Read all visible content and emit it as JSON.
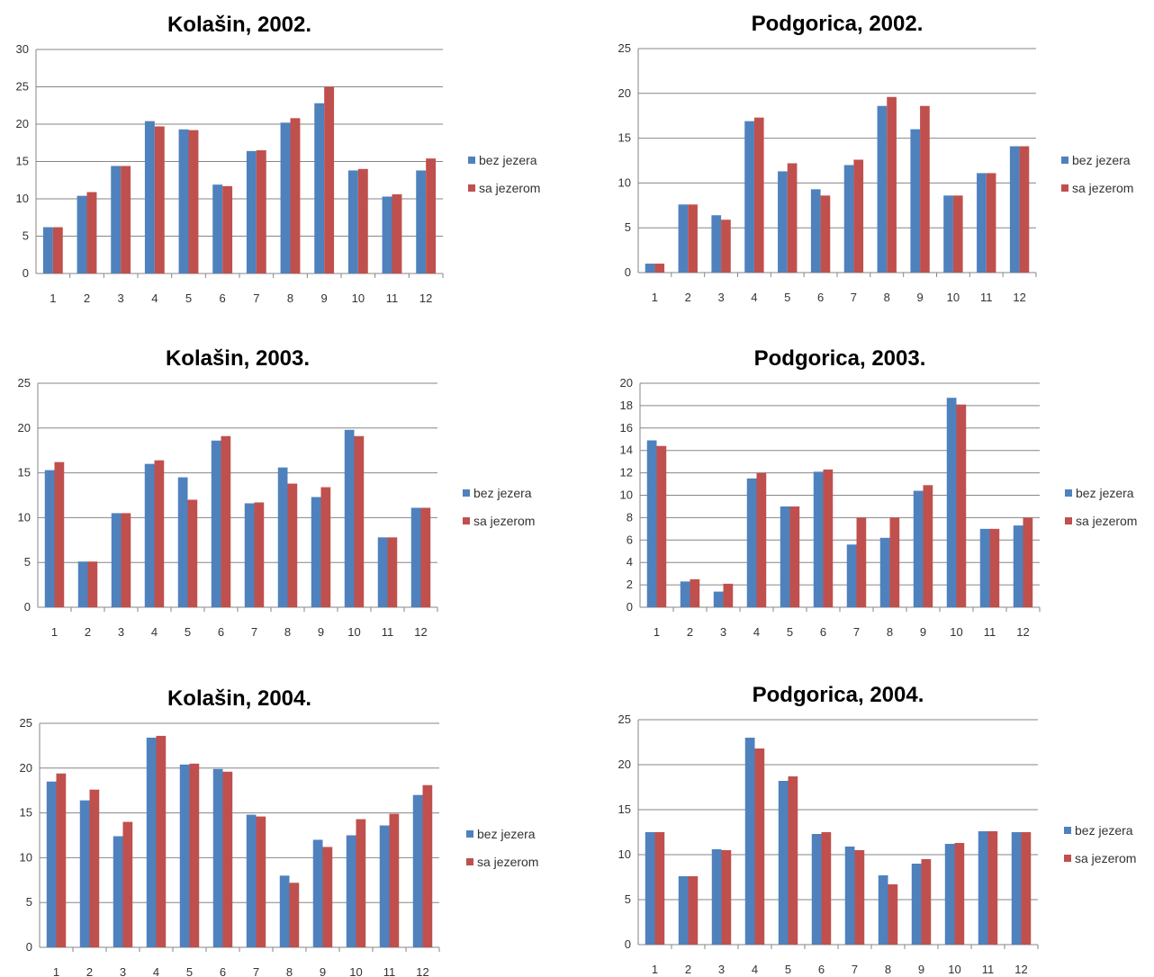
{
  "colors": {
    "bez_jezera": "#4F81BD",
    "sa_jezerom": "#C0504D",
    "grid": "#868686",
    "axis": "#868686"
  },
  "chart_data": [
    {
      "type": "bar",
      "title": "Kolašin, 2002.",
      "categories": [
        "1",
        "2",
        "3",
        "4",
        "5",
        "6",
        "7",
        "8",
        "9",
        "10",
        "11",
        "12"
      ],
      "ylim": [
        0,
        30
      ],
      "ystep": 5,
      "ytick_labels": [
        "0",
        "5",
        "10",
        "15",
        "20",
        "25",
        "30"
      ],
      "grid": true,
      "legend": "right",
      "series": [
        {
          "name": "bez jezera",
          "values": [
            6.2,
            10.4,
            14.4,
            20.4,
            19.3,
            11.9,
            16.4,
            20.2,
            22.8,
            13.8,
            10.3,
            13.8
          ]
        },
        {
          "name": "sa jezerom",
          "values": [
            6.2,
            10.9,
            14.4,
            19.7,
            19.2,
            11.7,
            16.5,
            20.8,
            25.0,
            14.0,
            10.6,
            15.4
          ]
        }
      ]
    },
    {
      "type": "bar",
      "title": "Podgorica, 2002.",
      "categories": [
        "1",
        "2",
        "3",
        "4",
        "5",
        "6",
        "7",
        "8",
        "9",
        "10",
        "11",
        "12"
      ],
      "ylim": [
        0,
        25
      ],
      "ystep": 5,
      "ytick_labels": [
        "0",
        "5",
        "10",
        "15",
        "20",
        "25"
      ],
      "grid": true,
      "legend": "right",
      "series": [
        {
          "name": "bez jezera",
          "values": [
            1.0,
            7.6,
            6.4,
            16.9,
            11.3,
            9.3,
            12.0,
            18.6,
            16.0,
            8.6,
            11.1,
            14.1
          ]
        },
        {
          "name": "sa jezerom",
          "values": [
            1.0,
            7.6,
            5.9,
            17.3,
            12.2,
            8.6,
            12.6,
            19.6,
            18.6,
            8.6,
            11.1,
            14.1
          ]
        }
      ]
    },
    {
      "type": "bar",
      "title": "Kolašin, 2003.",
      "categories": [
        "1",
        "2",
        "3",
        "4",
        "5",
        "6",
        "7",
        "8",
        "9",
        "10",
        "11",
        "12"
      ],
      "ylim": [
        0,
        25
      ],
      "ystep": 5,
      "ytick_labels": [
        "0",
        "5",
        "10",
        "15",
        "20",
        "25"
      ],
      "grid": true,
      "legend": "right",
      "series": [
        {
          "name": "bez jezera",
          "values": [
            15.3,
            5.1,
            10.5,
            16.0,
            14.5,
            18.6,
            11.6,
            15.6,
            12.3,
            19.8,
            7.8,
            11.1
          ]
        },
        {
          "name": "sa jezerom",
          "values": [
            16.2,
            5.1,
            10.5,
            16.4,
            12.0,
            19.1,
            11.7,
            13.8,
            13.4,
            19.1,
            7.8,
            11.1
          ]
        }
      ]
    },
    {
      "type": "bar",
      "title": "Podgorica, 2003.",
      "categories": [
        "1",
        "2",
        "3",
        "4",
        "5",
        "6",
        "7",
        "8",
        "9",
        "10",
        "11",
        "12"
      ],
      "ylim": [
        0,
        20
      ],
      "ystep": 2,
      "ytick_labels": [
        "0",
        "2",
        "4",
        "6",
        "8",
        "10",
        "12",
        "14",
        "16",
        "18",
        "20"
      ],
      "grid": true,
      "legend": "right",
      "series": [
        {
          "name": "bez jezera",
          "values": [
            14.9,
            2.3,
            1.4,
            11.5,
            9.0,
            12.1,
            5.6,
            6.2,
            10.4,
            18.7,
            7.0,
            7.3
          ]
        },
        {
          "name": "sa jezerom",
          "values": [
            14.4,
            2.5,
            2.1,
            12.0,
            9.0,
            12.3,
            8.0,
            8.0,
            10.9,
            18.1,
            7.0,
            8.0
          ]
        }
      ]
    },
    {
      "type": "bar",
      "title": "Kolašin, 2004.",
      "categories": [
        "1",
        "2",
        "3",
        "4",
        "5",
        "6",
        "7",
        "8",
        "9",
        "10",
        "11",
        "12"
      ],
      "ylim": [
        0,
        25
      ],
      "ystep": 5,
      "ytick_labels": [
        "0",
        "5",
        "10",
        "15",
        "20",
        "25"
      ],
      "grid": true,
      "legend": "right",
      "series": [
        {
          "name": "bez jezera",
          "values": [
            18.5,
            16.4,
            12.4,
            23.4,
            20.4,
            19.9,
            14.8,
            8.0,
            12.0,
            12.5,
            13.6,
            17.0
          ]
        },
        {
          "name": "sa jezerom",
          "values": [
            19.4,
            17.6,
            14.0,
            23.6,
            20.5,
            19.6,
            14.6,
            7.2,
            11.2,
            14.3,
            14.9,
            18.1
          ]
        }
      ]
    },
    {
      "type": "bar",
      "title": "Podgorica, 2004.",
      "categories": [
        "1",
        "2",
        "3",
        "4",
        "5",
        "6",
        "7",
        "8",
        "9",
        "10",
        "11",
        "12"
      ],
      "ylim": [
        0,
        25
      ],
      "ystep": 5,
      "ytick_labels": [
        "0",
        "5",
        "10",
        "15",
        "20",
        "25"
      ],
      "grid": true,
      "legend": "right",
      "series": [
        {
          "name": "bez jezera",
          "values": [
            12.5,
            7.6,
            10.6,
            23.0,
            18.2,
            12.3,
            10.9,
            7.7,
            9.0,
            11.2,
            12.6,
            12.5
          ]
        },
        {
          "name": "sa jezerom",
          "values": [
            12.5,
            7.6,
            10.5,
            21.8,
            18.7,
            12.5,
            10.5,
            6.7,
            9.5,
            11.3,
            12.6,
            12.5
          ]
        }
      ]
    }
  ]
}
